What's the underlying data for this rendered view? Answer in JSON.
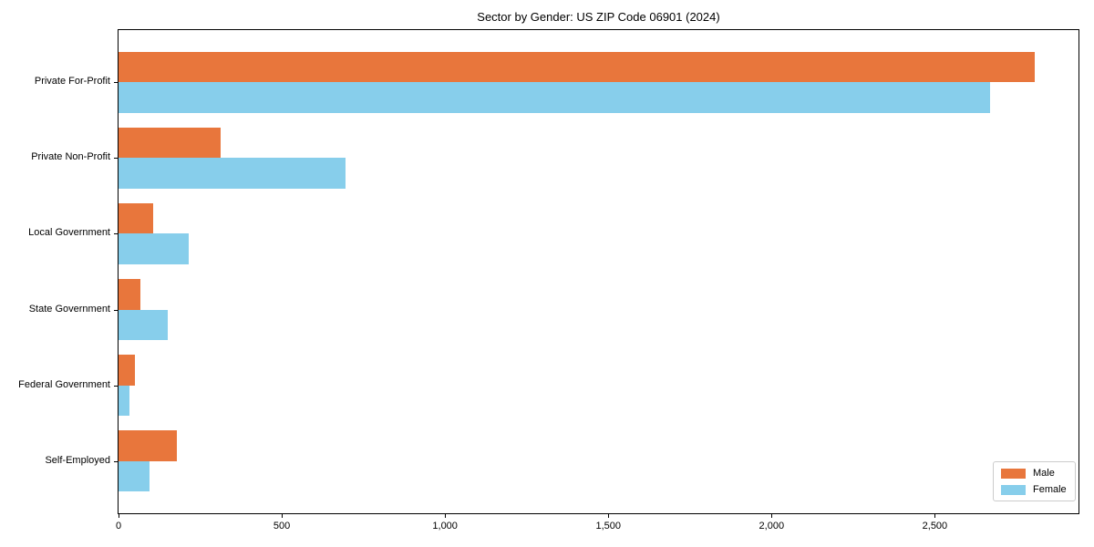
{
  "title": "Sector by Gender: US ZIP Code 06901 (2024)",
  "chart_data": {
    "type": "bar",
    "orientation": "horizontal",
    "title": "Sector by Gender: US ZIP Code 06901 (2024)",
    "categories": [
      "Private For-Profit",
      "Private Non-Profit",
      "Local Government",
      "State Government",
      "Federal Government",
      "Self-Employed"
    ],
    "series": [
      {
        "name": "Male",
        "color": "#E8763C",
        "values": [
          2805,
          314,
          105,
          68,
          50,
          180
        ]
      },
      {
        "name": "Female",
        "color": "#87CEEB",
        "values": [
          2670,
          694,
          215,
          152,
          33,
          96
        ]
      }
    ],
    "x_ticks": [
      0,
      500,
      1000,
      1500,
      2000,
      2500
    ],
    "x_tick_labels": [
      "0",
      "500",
      "1,000",
      "1,500",
      "2,000",
      "2,500"
    ],
    "xlim": [
      0,
      2940
    ],
    "grid": false,
    "legend": {
      "position": "lower-right",
      "items": [
        "Male",
        "Female"
      ]
    },
    "colors": {
      "male": "#E8763C",
      "female": "#87CEEB",
      "spine": "#000000",
      "background": "#FFFFFF"
    }
  }
}
